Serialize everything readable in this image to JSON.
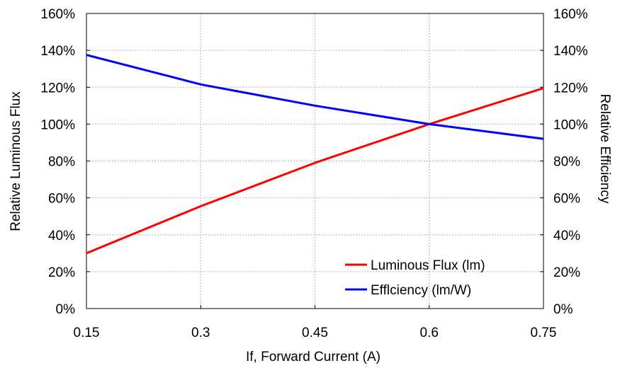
{
  "chart_data": {
    "type": "line",
    "title": "",
    "xlabel": "If, Forward Current (A)",
    "ylabel_left": "Relative Luminous Flux",
    "ylabel_right": "Relative Efficiency",
    "x_ticks": [
      "0.15",
      "0.3",
      "0.45",
      "0.6",
      "0.75"
    ],
    "y_ticks": [
      "0%",
      "20%",
      "40%",
      "60%",
      "80%",
      "100%",
      "120%",
      "140%",
      "160%"
    ],
    "xlim": [
      0.15,
      0.75
    ],
    "ylim": [
      0,
      1.6
    ],
    "grid": true,
    "legend_position": "bottom-right",
    "x": [
      0.15,
      0.3,
      0.45,
      0.6,
      0.75
    ],
    "series": [
      {
        "name": "Luminous Flux (lm)",
        "color": "#ff0000",
        "axis": "left",
        "values": [
          0.3,
          0.555,
          0.79,
          1.0,
          1.195
        ]
      },
      {
        "name": "Efflciency (lm/W)",
        "color": "#0000ff",
        "axis": "right",
        "values": [
          1.375,
          1.215,
          1.1,
          1.0,
          0.92
        ]
      }
    ]
  }
}
